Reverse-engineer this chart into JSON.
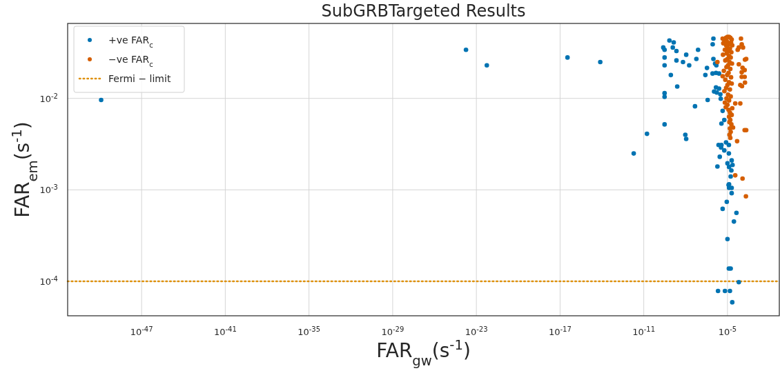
{
  "chart_data": {
    "type": "scatter",
    "title": "SubGRBTargeted Results",
    "xlabel": "FAR$_{gw}$(s$^{-1}$)",
    "ylabel": "FAR$_{em}$(s$^{-1}$)",
    "log": "xy",
    "grid": true,
    "legend": "top left",
    "marker": "circle",
    "xlim": [
      5e-53,
      0.052
    ],
    "ylim": [
      4.2e-05,
      0.066
    ],
    "xticks": [
      {
        "value": 1e-47,
        "label": "10$^{-47}$"
      },
      {
        "value": 1e-41,
        "label": "10$^{-41}$"
      },
      {
        "value": 1e-35,
        "label": "10$^{-35}$"
      },
      {
        "value": 1e-29,
        "label": "10$^{-29}$"
      },
      {
        "value": 1e-23,
        "label": "10$^{-23}$"
      },
      {
        "value": 1e-17,
        "label": "10$^{-17}$"
      },
      {
        "value": 1e-11,
        "label": "10$^{-11}$"
      },
      {
        "value": 1e-05,
        "label": "10$^{-5}$"
      }
    ],
    "yticks": [
      {
        "value": 0.0001,
        "label": "10$^{-4}$"
      },
      {
        "value": 0.001,
        "label": "10$^{-3}$"
      },
      {
        "value": 0.01,
        "label": "10$^{-2}$"
      }
    ],
    "ref_lines": [
      {
        "axis": "y",
        "value": 0.0001,
        "label": "Fermi − limit",
        "color": "#de8f05",
        "line_style": "dotted"
      }
    ],
    "series": [
      {
        "name": "+ve FAR$_{c}$",
        "color": "#0173b2",
        "x": [
          1.26e-50,
          1.8e-24,
          5.6e-23,
          3.4e-17,
          7.6e-15,
          1.9e-12,
          6.9e-10,
          1.4e-09,
          1.2e-09,
          2.2e-09,
          2.5e-10,
          3.1e-10,
          3.1e-10,
          2.2e-09,
          6.5e-09,
          1.1e-08,
          1.8e-08,
          7.8e-08,
          5.9e-08,
          3.1e-10,
          8.7e-10,
          2.5e-09,
          3.1e-10,
          3.1e-10,
          3.8e-07,
          4.7e-08,
          3.1e-10,
          1.7e-11,
          9.5e-09,
          1.1e-08,
          9.8e-07,
          8.7e-07,
          9.8e-07,
          1.3e-06,
          1.6e-06,
          3.4e-07,
          2.6e-07,
          8.5e-07,
          1.5e-06,
          2.5e-06,
          1.5e-06,
          2.5e-06,
          1.1e-06,
          1.7e-06,
          3.1e-06,
          3.3e-06,
          4.5e-06,
          5.9e-06,
          3.7e-06,
          2.3e-06,
          3.7e-06,
          3.5e-06,
          5.9e-06,
          7.9e-06,
          1.26e-05,
          1.26e-05,
          2.8e-06,
          2e-05,
          1.9e-06,
          1e-05,
          2.3e-05,
          1.3e-05,
          1.9e-05,
          1.7e-05,
          1.3e-05,
          1.2e-05,
          1.3e-05,
          2e-05,
          2e-05,
          8.9e-06,
          4.5e-06,
          4.4e-05,
          2.9e-05,
          1e-05,
          1.26e-05,
          1.7e-05,
          6.5e-05,
          2.1e-06,
          6.6e-06,
          1.5e-05,
          2.2e-05
        ],
        "values": [
          0.0096,
          0.034,
          0.023,
          0.028,
          0.025,
          0.0025,
          0.043,
          0.041,
          0.036,
          0.033,
          0.036,
          0.034,
          0.028,
          0.026,
          0.025,
          0.03,
          0.023,
          0.034,
          0.027,
          0.023,
          0.018,
          0.0135,
          0.0114,
          0.0104,
          0.0096,
          0.0082,
          0.0052,
          0.0041,
          0.004,
          0.0036,
          0.045,
          0.039,
          0.027,
          0.024,
          0.023,
          0.0215,
          0.018,
          0.0187,
          0.019,
          0.0187,
          0.0132,
          0.0128,
          0.0119,
          0.0116,
          0.0111,
          0.0099,
          0.0073,
          0.0058,
          0.0053,
          0.0031,
          0.0031,
          0.0029,
          0.0027,
          0.0033,
          0.0031,
          0.0025,
          0.0023,
          0.0021,
          0.0018,
          0.00195,
          0.00187,
          0.00178,
          0.00163,
          0.0014,
          0.00115,
          0.00113,
          0.00105,
          0.00105,
          0.00092,
          0.00074,
          0.00062,
          0.00056,
          0.00045,
          0.00029,
          0.000138,
          0.000138,
          9.8e-05,
          7.85e-05,
          7.85e-05,
          7.85e-05,
          5.9e-05
        ]
      },
      {
        "name": "−ve FAR$_{c}$",
        "color": "#d55e00",
        "x": [
          9.3e-05,
          0.000105,
          6.5e-05,
          5.4e-05,
          0.00013,
          0.00018,
          0.00022,
          6.5e-05,
          0.00012,
          0.00017,
          0.000105,
          0.000105,
          0.00017,
          8.3e-05,
          0.00011,
          0.00018,
          1.9e-06,
          3.6e-05,
          8.3e-05,
          2.2e-05,
          2e-05,
          0.00022,
          0.00017,
          4.9e-05,
          2.5e-05,
          3.6e-05,
          0.00012,
          0.00021,
          1e-05,
          1.3e-05,
          7.9e-06,
          1.6e-05,
          4.5e-06,
          2e-05,
          6e-06,
          9e-06,
          1.8e-05,
          5e-06,
          1.2e-05,
          8e-06,
          2.2e-05,
          1e-05,
          1.5e-05,
          6.5e-06,
          1.2e-05,
          1.9e-05,
          9e-06,
          4.8e-06,
          1.3e-05,
          1.7e-05,
          1e-05,
          7e-06,
          1.4e-05,
          2.1e-05,
          1.1e-05,
          8.5e-06,
          1.6e-05,
          5.5e-06,
          1.2e-05,
          9.5e-06,
          1.8e-05,
          4.5e-06,
          7e-06,
          1.3e-05,
          1e-05,
          2e-05,
          8e-06,
          1.5e-05,
          6e-06,
          1.1e-05,
          1.7e-05,
          8.5e-06,
          1.3e-05,
          6.5e-06,
          1e-05,
          7.5e-06,
          1.2e-05,
          1.5e-05,
          1.3e-05,
          1.6e-05,
          1.4e-05,
          1.9e-05,
          1.5e-05,
          1.7e-05,
          1.4e-05,
          1.6e-05
        ],
        "values": [
          0.045,
          0.039,
          0.036,
          0.034,
          0.036,
          0.0265,
          0.027,
          0.0236,
          0.0216,
          0.0204,
          0.0193,
          0.0172,
          0.0172,
          0.014,
          0.0136,
          0.0149,
          0.025,
          0.0088,
          0.0088,
          0.0078,
          0.0066,
          0.0045,
          0.0045,
          0.0034,
          0.0048,
          0.00144,
          0.00133,
          0.00085,
          0.047,
          0.047,
          0.046,
          0.046,
          0.045,
          0.044,
          0.043,
          0.042,
          0.041,
          0.04,
          0.039,
          0.038,
          0.038,
          0.036,
          0.035,
          0.034,
          0.033,
          0.032,
          0.031,
          0.03,
          0.029,
          0.028,
          0.027,
          0.026,
          0.025,
          0.024,
          0.023,
          0.022,
          0.021,
          0.02,
          0.019,
          0.018,
          0.017,
          0.0175,
          0.016,
          0.015,
          0.014,
          0.0145,
          0.013,
          0.0125,
          0.012,
          0.011,
          0.0105,
          0.01,
          0.0095,
          0.009,
          0.0085,
          0.008,
          0.0075,
          0.007,
          0.0063,
          0.0058,
          0.0055,
          0.0052,
          0.0047,
          0.0043,
          0.004,
          0.0037
        ]
      }
    ]
  }
}
